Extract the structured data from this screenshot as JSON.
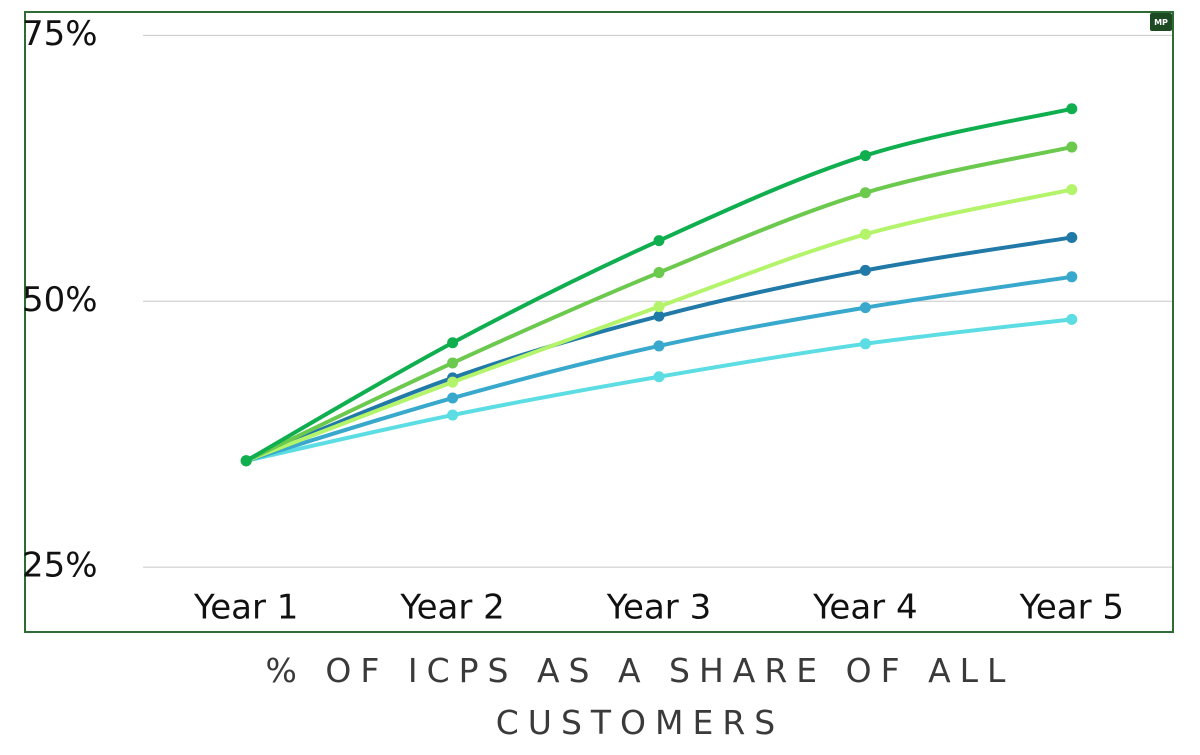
{
  "chart_data": {
    "type": "line",
    "title": "% OF ICPS AS A SHARE OF ALL CUSTOMERS",
    "badge": "MP",
    "categories": [
      "Year 1",
      "Year 2",
      "Year 3",
      "Year 4",
      "Year 5"
    ],
    "series": [
      {
        "color": "#0fae4f",
        "values": [
          35.0,
          46.1,
          55.7,
          63.7,
          68.1
        ]
      },
      {
        "color": "#6bc94e",
        "values": [
          35.0,
          44.2,
          52.7,
          60.2,
          64.5
        ]
      },
      {
        "color": "#b3f46a",
        "values": [
          35.0,
          42.4,
          49.5,
          56.3,
          60.5
        ]
      },
      {
        "color": "#2179a8",
        "values": [
          35.0,
          42.8,
          48.6,
          52.9,
          56.0
        ]
      },
      {
        "color": "#38a8cc",
        "values": [
          35.0,
          40.9,
          45.8,
          49.4,
          52.3
        ]
      },
      {
        "color": "#5cdde3",
        "values": [
          35.0,
          39.3,
          42.9,
          46.0,
          48.3
        ]
      }
    ],
    "ylim": [
      18.9,
      77.2
    ],
    "yticks": [
      {
        "value": 25,
        "label": "25%"
      },
      {
        "value": 50,
        "label": "50%"
      },
      {
        "value": 75,
        "label": "75%"
      }
    ],
    "grid": true
  }
}
